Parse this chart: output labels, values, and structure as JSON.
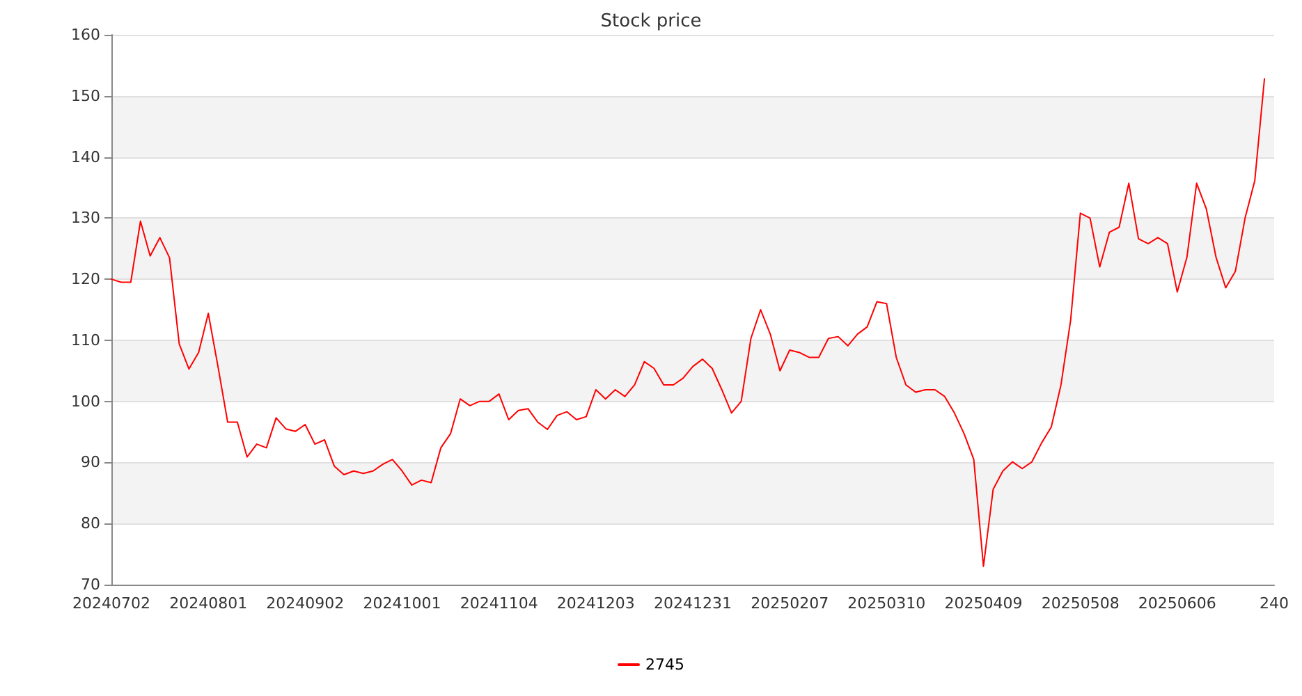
{
  "chart_data": {
    "type": "line",
    "title": "Stock price",
    "categories": [
      "20240702",
      null,
      null,
      null,
      null,
      null,
      null,
      null,
      null,
      null,
      "20240801",
      null,
      null,
      null,
      null,
      null,
      null,
      null,
      null,
      null,
      "20240902",
      null,
      null,
      null,
      null,
      null,
      null,
      null,
      null,
      null,
      "20241001",
      null,
      null,
      null,
      null,
      null,
      null,
      null,
      null,
      null,
      "20241104",
      null,
      null,
      null,
      null,
      null,
      null,
      null,
      null,
      null,
      "20241203",
      null,
      null,
      null,
      null,
      null,
      null,
      null,
      null,
      null,
      "20241231",
      null,
      null,
      null,
      null,
      null,
      null,
      null,
      null,
      null,
      "20250207",
      null,
      null,
      null,
      null,
      null,
      null,
      null,
      null,
      null,
      "20250310",
      null,
      null,
      null,
      null,
      null,
      null,
      null,
      null,
      null,
      "20250409",
      null,
      null,
      null,
      null,
      null,
      null,
      null,
      null,
      null,
      "20250508",
      null,
      null,
      null,
      null,
      null,
      null,
      null,
      null,
      null,
      "20250606",
      null,
      null,
      null,
      null,
      null,
      null,
      null,
      null,
      null,
      "240"
    ],
    "series": [
      {
        "name": "2745",
        "color": "#ff0000",
        "values": [
          120,
          119.5,
          119.5,
          129.5,
          123.8,
          126.8,
          123.5,
          109.4,
          105.3,
          108,
          114.4,
          105.7,
          96.6,
          96.6,
          90.9,
          93,
          92.4,
          97.3,
          95.5,
          95.1,
          96.2,
          93,
          93.7,
          89.4,
          88,
          88.6,
          88.2,
          88.6,
          89.7,
          90.5,
          88.6,
          86.3,
          87.1,
          86.7,
          92.4,
          94.7,
          100.4,
          99.3,
          100,
          100,
          101.2,
          97,
          98.5,
          98.8,
          96.6,
          95.4,
          97.7,
          98.3,
          97,
          97.5,
          101.9,
          100.4,
          101.9,
          100.8,
          102.7,
          106.5,
          105.4,
          102.7,
          102.7,
          103.8,
          105.7,
          106.9,
          105.4,
          101.9,
          98.1,
          100,
          110.3,
          115,
          111,
          105,
          108.4,
          108,
          107.2,
          107.2,
          110.3,
          110.6,
          109.1,
          111,
          112.2,
          116.3,
          116,
          107.2,
          102.7,
          101.5,
          101.9,
          101.9,
          100.8,
          98.1,
          94.7,
          90.5,
          73,
          85.6,
          88.6,
          90.1,
          89,
          90.1,
          93.2,
          95.8,
          102.7,
          113.3,
          130.8,
          130,
          122,
          127.7,
          128.5,
          135.7,
          126.6,
          125.8,
          126.8,
          125.8,
          117.9,
          123.6,
          135.7,
          131.5,
          123.6,
          118.6,
          121.3,
          130,
          136.1,
          152.8,
          null
        ]
      }
    ],
    "ylim": [
      70,
      160
    ],
    "yticks": [
      70,
      80,
      90,
      100,
      110,
      120,
      130,
      140,
      150,
      160
    ],
    "grid": "y",
    "legend": "bottom",
    "marker": "none",
    "line_style": "solid"
  }
}
